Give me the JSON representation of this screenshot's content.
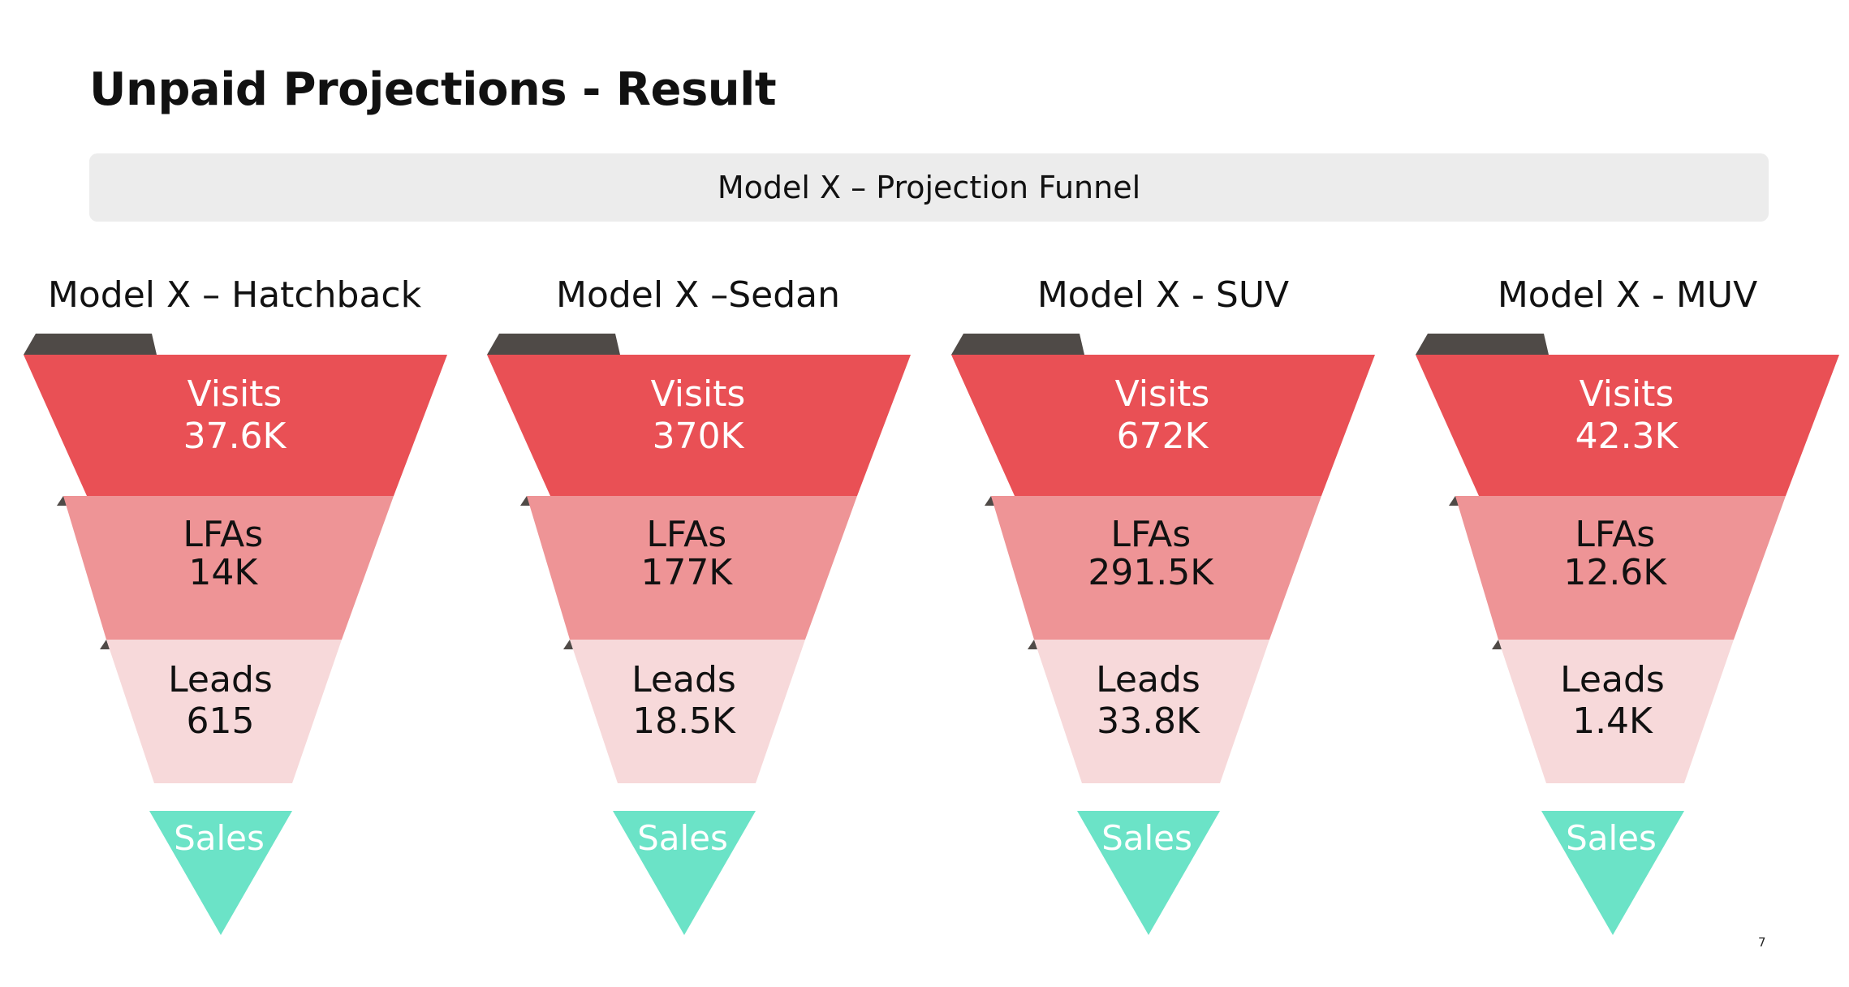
{
  "page": {
    "title": "Unpaid Projections - Result",
    "banner": "Model X – Projection Funnel",
    "page_number": "7"
  },
  "colors": {
    "tab": "#4f4a47",
    "visits": "#e95055",
    "lfas": "#ee9496",
    "leads": "#f7d9da",
    "sales": "#6be3c7"
  },
  "funnels": [
    {
      "title": "Model X – Hatchback",
      "stages": [
        {
          "label": "Visits",
          "value": "37.6K"
        },
        {
          "label": "LFAs",
          "value": "14K"
        },
        {
          "label": "Leads",
          "value": "615"
        },
        {
          "label": "Sales"
        }
      ]
    },
    {
      "title": "Model X –Sedan",
      "stages": [
        {
          "label": "Visits",
          "value": "370K"
        },
        {
          "label": "LFAs",
          "value": "177K"
        },
        {
          "label": "Leads",
          "value": "18.5K"
        },
        {
          "label": "Sales"
        }
      ]
    },
    {
      "title": "Model X - SUV",
      "stages": [
        {
          "label": "Visits",
          "value": "672K"
        },
        {
          "label": "LFAs",
          "value": "291.5K"
        },
        {
          "label": "Leads",
          "value": "33.8K"
        },
        {
          "label": "Sales"
        }
      ]
    },
    {
      "title": "Model X - MUV",
      "stages": [
        {
          "label": "Visits",
          "value": "42.3K"
        },
        {
          "label": "LFAs",
          "value": "12.6K"
        },
        {
          "label": "Leads",
          "value": "1.4K"
        },
        {
          "label": "Sales"
        }
      ]
    }
  ]
}
